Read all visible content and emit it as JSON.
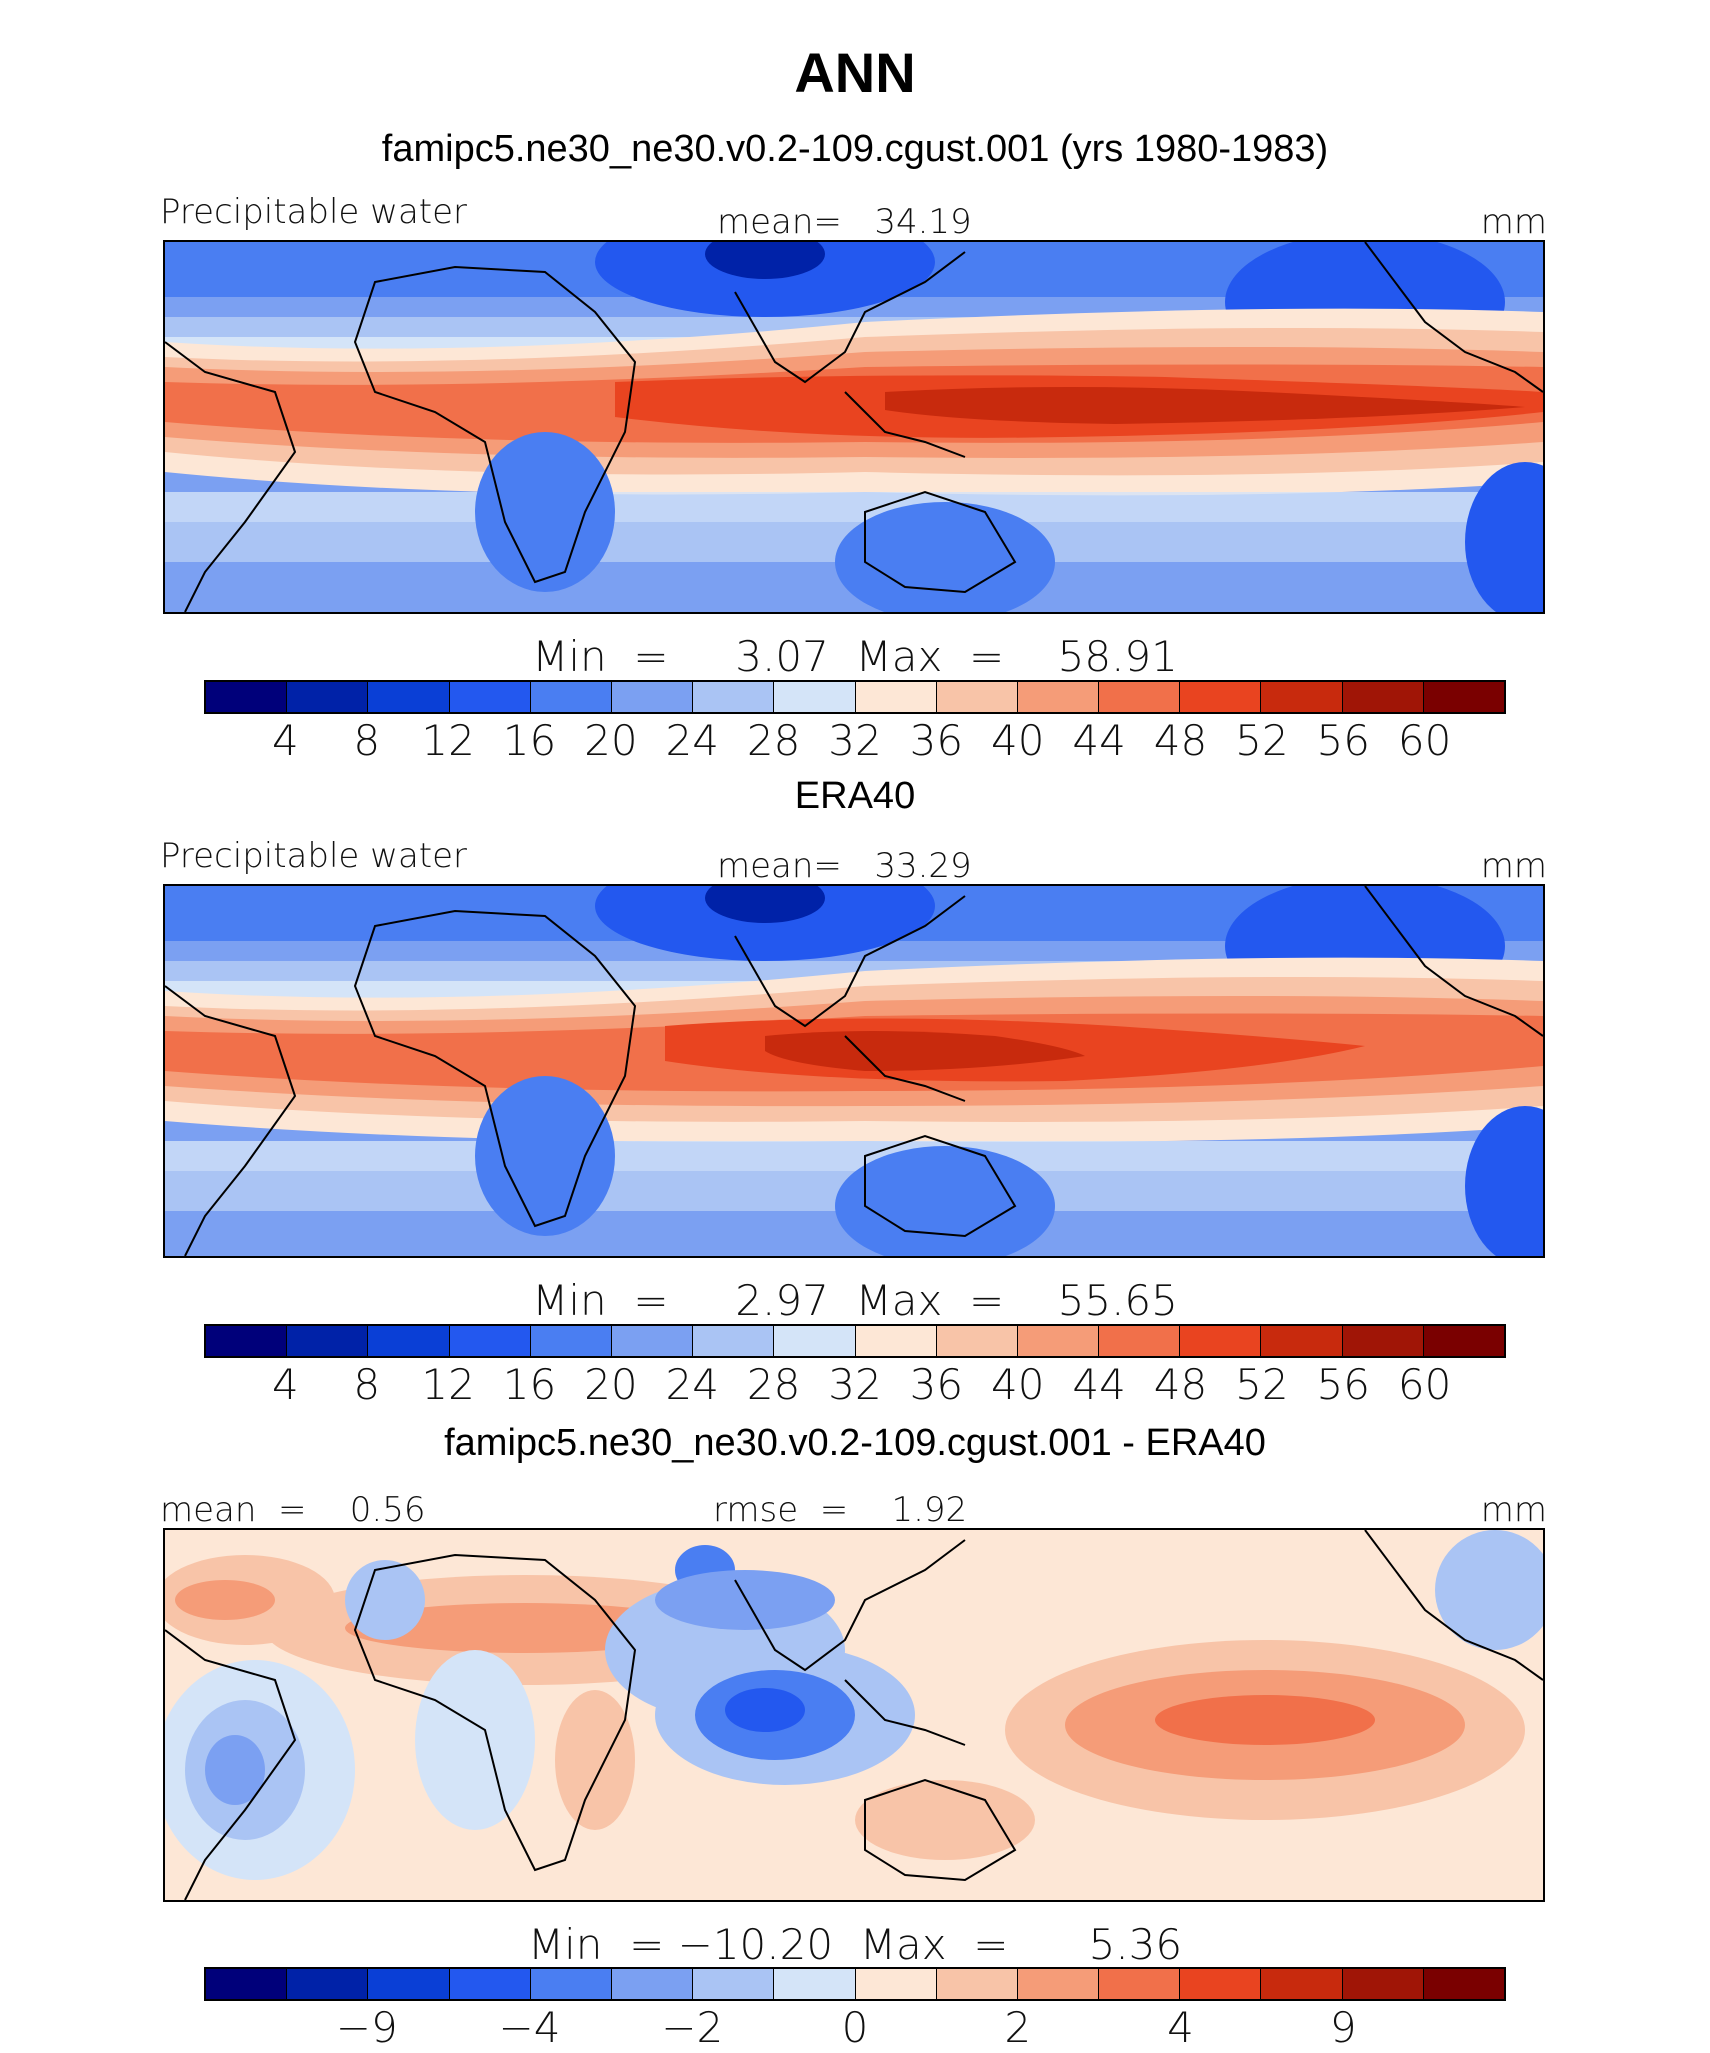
{
  "title": "ANN",
  "panels": [
    {
      "title": "famipc5.ne30_ne30.v0.2-109.cgust.001 (yrs 1980-1983)",
      "variable": "Precipitable water",
      "stat_label": "mean=   34.19",
      "unit": "mm",
      "minmax": "Min  =     3.07  Max  =    58.91",
      "kind": "absolute",
      "colorbar_ticks": [
        "4",
        "8",
        "12",
        "16",
        "20",
        "24",
        "28",
        "32",
        "36",
        "40",
        "44",
        "48",
        "52",
        "56",
        "60"
      ],
      "statistics": {
        "mean": 34.19,
        "min": 3.07,
        "max": 58.91
      }
    },
    {
      "title": "ERA40",
      "variable": "Precipitable water",
      "stat_label": "mean=   33.29",
      "unit": "mm",
      "minmax": "Min  =     2.97  Max  =    55.65",
      "kind": "absolute",
      "colorbar_ticks": [
        "4",
        "8",
        "12",
        "16",
        "20",
        "24",
        "28",
        "32",
        "36",
        "40",
        "44",
        "48",
        "52",
        "56",
        "60"
      ],
      "statistics": {
        "mean": 33.29,
        "min": 2.97,
        "max": 55.65
      }
    },
    {
      "title": "famipc5.ne30_ne30.v0.2-109.cgust.001 - ERA40",
      "mean_label": "mean  =    0.56",
      "stat_label": "rmse  =    1.92",
      "unit": "mm",
      "minmax": "Min  = −10.20  Max  =      5.36",
      "kind": "difference",
      "colorbar_ticks": [
        "−9",
        "−4",
        "−2",
        "0",
        "2",
        "4",
        "9"
      ],
      "statistics": {
        "mean": 0.56,
        "rmse": 1.92,
        "min": -10.2,
        "max": 5.36
      }
    }
  ],
  "colorbar_colors": [
    "#00007a",
    "#0022a8",
    "#0a3fd6",
    "#2358ef",
    "#4a7ef2",
    "#7ba0f2",
    "#aac4f4",
    "#d4e4f8",
    "#fde7d6",
    "#f8c4a8",
    "#f59c78",
    "#f1704a",
    "#e94420",
    "#c82a0d",
    "#a01506",
    "#7a0000"
  ]
}
